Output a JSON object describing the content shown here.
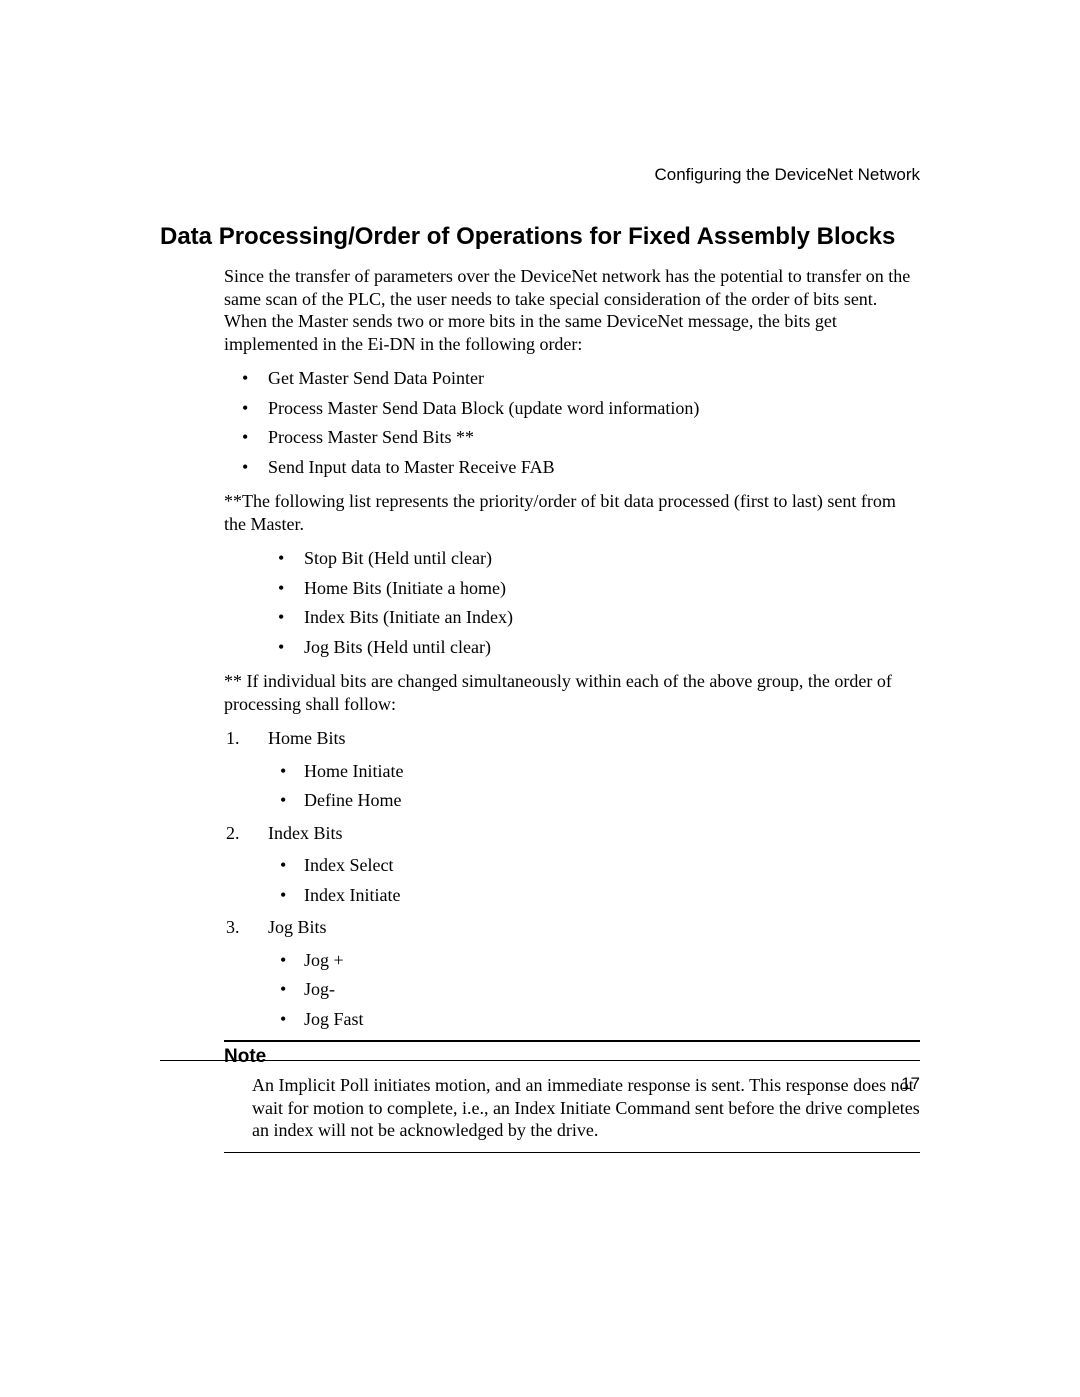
{
  "header": {
    "running": "Configuring the DeviceNet Network",
    "page_number": "17"
  },
  "section": {
    "title": "Data Processing/Order of Operations for Fixed Assembly Blocks",
    "intro": "Since the transfer of parameters over the DeviceNet network has the potential to transfer on the same scan of the PLC, the user needs to take special consideration of the order of bits sent. When the Master sends two or more bits in the same DeviceNet message, the bits get implemented in the Ei-DN in the following order:",
    "steps": [
      "Get Master Send Data Pointer",
      "Process Master Send Data Block (update word information)",
      "Process Master Send Bits **",
      "Send Input data to Master Receive FAB"
    ],
    "priority_intro": "**The following list represents the priority/order of bit data processed (first to last) sent from the Master.",
    "priority_list": [
      "Stop Bit (Held until clear)",
      "Home Bits (Initiate a home)",
      "Index Bits (Initiate an Index)",
      "Jog Bits (Held until clear)"
    ],
    "group_intro": "** If individual bits are changed simultaneously within each of the above group, the order of processing shall follow:",
    "groups": [
      {
        "label": "Home Bits",
        "items": [
          "Home Initiate",
          "Define Home"
        ]
      },
      {
        "label": "Index Bits",
        "items": [
          "Index Select",
          "Index Initiate"
        ]
      },
      {
        "label": "Jog Bits",
        "items": [
          "Jog +",
          "Jog-",
          "Jog Fast"
        ]
      }
    ]
  },
  "note": {
    "label": "Note",
    "text": "An Implicit Poll initiates motion, and an immediate response is sent. This response does not wait for motion to complete, i.e., an Index Initiate Command sent before the drive completes an index will not be acknowledged by the drive."
  }
}
